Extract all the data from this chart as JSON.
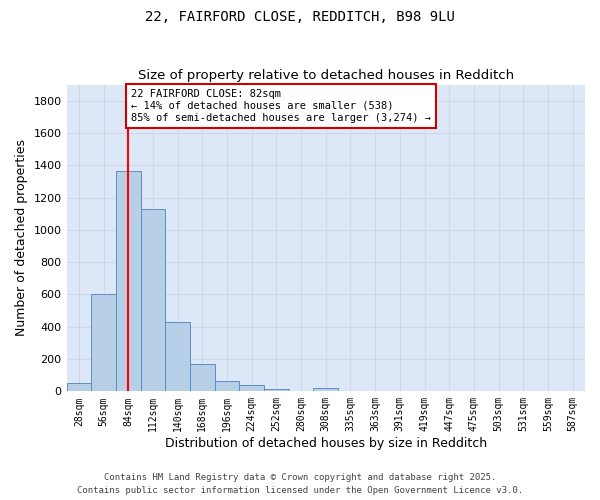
{
  "title1": "22, FAIRFORD CLOSE, REDDITCH, B98 9LU",
  "title2": "Size of property relative to detached houses in Redditch",
  "xlabel": "Distribution of detached houses by size in Redditch",
  "ylabel": "Number of detached properties",
  "bin_labels": [
    "28sqm",
    "56sqm",
    "84sqm",
    "112sqm",
    "140sqm",
    "168sqm",
    "196sqm",
    "224sqm",
    "252sqm",
    "280sqm",
    "308sqm",
    "335sqm",
    "363sqm",
    "391sqm",
    "419sqm",
    "447sqm",
    "475sqm",
    "503sqm",
    "531sqm",
    "559sqm",
    "587sqm"
  ],
  "bar_values": [
    50,
    605,
    1365,
    1130,
    430,
    170,
    65,
    40,
    15,
    0,
    20,
    0,
    0,
    0,
    0,
    0,
    0,
    0,
    0,
    0,
    0
  ],
  "bar_color": "#b8cfe8",
  "bar_edge_color": "#5b8ec4",
  "grid_color": "#d0d8e8",
  "background_color": "#dce8f8",
  "fig_background": "#ffffff",
  "red_line_index": 2,
  "annotation_text": "22 FAIRFORD CLOSE: 82sqm\n← 14% of detached houses are smaller (538)\n85% of semi-detached houses are larger (3,274) →",
  "annotation_box_color": "#ffffff",
  "annotation_box_edge": "#cc0000",
  "ylim": [
    0,
    1900
  ],
  "yticks": [
    0,
    200,
    400,
    600,
    800,
    1000,
    1200,
    1400,
    1600,
    1800
  ],
  "footer1": "Contains HM Land Registry data © Crown copyright and database right 2025.",
  "footer2": "Contains public sector information licensed under the Open Government Licence v3.0."
}
